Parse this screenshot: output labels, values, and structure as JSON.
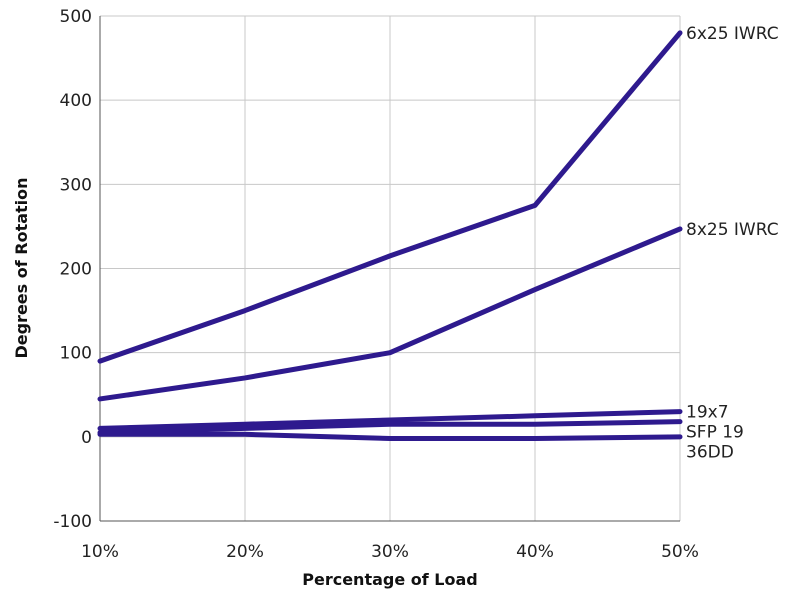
{
  "chart_data": {
    "type": "line",
    "title": "",
    "xlabel": "Percentage of Load",
    "ylabel": "Degrees of Rotation",
    "categories": [
      "10%",
      "20%",
      "30%",
      "40%",
      "50%"
    ],
    "yticks": [
      -100,
      0,
      100,
      200,
      300,
      400,
      500
    ],
    "ylim": [
      -100,
      500
    ],
    "grid": "horizontal",
    "legend": "inline-right",
    "line_color": "#2e1a8e",
    "grid_color": "#c8c8c8",
    "series": [
      {
        "name": "6x25 IWRC",
        "values": [
          90,
          150,
          215,
          275,
          480
        ]
      },
      {
        "name": "8x25 IWRC",
        "values": [
          45,
          70,
          100,
          175,
          247
        ]
      },
      {
        "name": "19x7",
        "values": [
          10,
          15,
          20,
          25,
          30
        ]
      },
      {
        "name": "SFP 19",
        "values": [
          5,
          10,
          15,
          15,
          18
        ]
      },
      {
        "name": "36DD",
        "values": [
          3,
          3,
          -2,
          -2,
          0
        ]
      }
    ]
  }
}
